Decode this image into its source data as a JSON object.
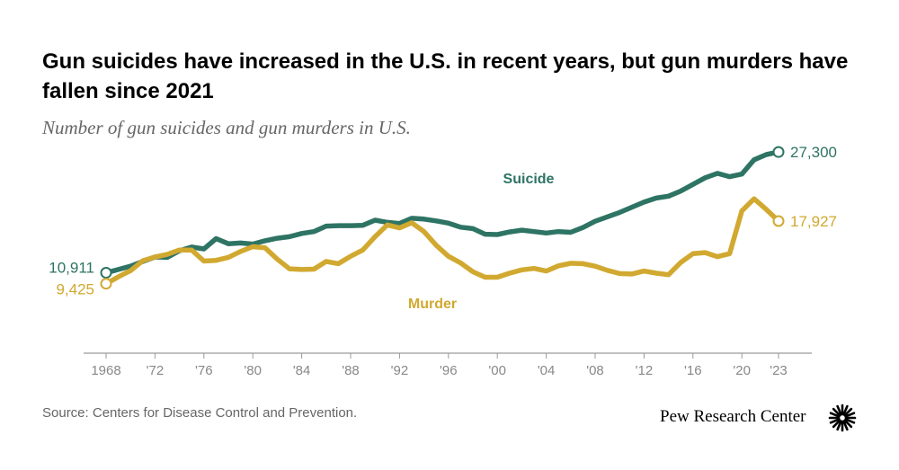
{
  "title": "Gun suicides have increased in the U.S. in recent years, but gun murders have fallen since 2021",
  "subtitle": "Number of gun suicides and gun murders in U.S.",
  "source": "Source: Centers for Disease Control and Prevention.",
  "brand": "Pew Research Center",
  "colors": {
    "suicide": "#2e7464",
    "murder": "#d1a930",
    "axis": "#9a9a9a",
    "tick_text": "#888888"
  },
  "chart_data": {
    "type": "line",
    "title": "Gun suicides have increased in the U.S. in recent years, but gun murders have fallen since 2021",
    "subtitle": "Number of gun suicides and gun murders in U.S.",
    "xlabel": "",
    "ylabel": "",
    "xlim": [
      1968,
      2023
    ],
    "ylim": [
      0,
      30000
    ],
    "grid": false,
    "x": [
      1968,
      1969,
      1970,
      1971,
      1972,
      1973,
      1974,
      1975,
      1976,
      1977,
      1978,
      1979,
      1980,
      1981,
      1982,
      1983,
      1984,
      1985,
      1986,
      1987,
      1988,
      1989,
      1990,
      1991,
      1992,
      1993,
      1994,
      1995,
      1996,
      1997,
      1998,
      1999,
      2000,
      2001,
      2002,
      2003,
      2004,
      2005,
      2006,
      2007,
      2008,
      2009,
      2010,
      2011,
      2012,
      2013,
      2014,
      2015,
      2016,
      2017,
      2018,
      2019,
      2020,
      2021,
      2022,
      2023
    ],
    "series": [
      {
        "name": "Suicide",
        "values": [
          10911,
          11350,
          11800,
          12450,
          13050,
          13000,
          13900,
          14400,
          14150,
          15550,
          14850,
          14950,
          14800,
          15250,
          15600,
          15800,
          16250,
          16500,
          17250,
          17300,
          17300,
          17350,
          18050,
          17750,
          17600,
          18300,
          18200,
          17950,
          17650,
          17100,
          16900,
          16150,
          16100,
          16450,
          16700,
          16500,
          16300,
          16500,
          16400,
          17050,
          17900,
          18500,
          19100,
          19800,
          20500,
          21050,
          21300,
          22000,
          22900,
          23800,
          24400,
          23950,
          24300,
          26250,
          26950,
          27300
        ]
      },
      {
        "name": "Murder",
        "values": [
          9425,
          10350,
          11200,
          12550,
          13050,
          13400,
          14000,
          14000,
          12500,
          12600,
          13000,
          13800,
          14450,
          14300,
          12750,
          11450,
          11350,
          11400,
          12450,
          12150,
          13150,
          14000,
          15800,
          17400,
          17000,
          17700,
          16500,
          14650,
          13150,
          12250,
          11050,
          10300,
          10300,
          10850,
          11300,
          11500,
          11150,
          11850,
          12200,
          12150,
          11800,
          11250,
          10800,
          10750,
          11150,
          10850,
          10650,
          12300,
          13500,
          13650,
          13100,
          13500,
          19300,
          20950,
          19500,
          17927
        ]
      }
    ],
    "x_tick_labels": [
      {
        "x": 1968,
        "label": "1968"
      },
      {
        "x": 1972,
        "label": "'72"
      },
      {
        "x": 1976,
        "label": "'76"
      },
      {
        "x": 1980,
        "label": "'80"
      },
      {
        "x": 1984,
        "label": "'84"
      },
      {
        "x": 1988,
        "label": "'88"
      },
      {
        "x": 1992,
        "label": "'92"
      },
      {
        "x": 1996,
        "label": "'96"
      },
      {
        "x": 2000,
        "label": "'00"
      },
      {
        "x": 2004,
        "label": "'04"
      },
      {
        "x": 2008,
        "label": "'08"
      },
      {
        "x": 2012,
        "label": "'12"
      },
      {
        "x": 2016,
        "label": "'16"
      },
      {
        "x": 2020,
        "label": "'20"
      },
      {
        "x": 2023,
        "label": "'23"
      }
    ],
    "annotations": {
      "suicide_start": "10,911",
      "murder_start": "9,425",
      "suicide_end": "27,300",
      "murder_end": "17,927",
      "suicide_label": "Suicide",
      "murder_label": "Murder"
    }
  }
}
